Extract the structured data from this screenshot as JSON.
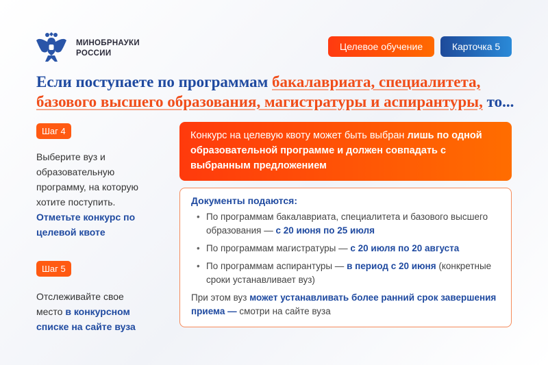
{
  "header": {
    "logo_icon": "double-headed-eagle-emblem",
    "org_line1": "МИНОБРНАУКИ",
    "org_line2": "РОССИИ",
    "tag_topic": "Целевое обучение",
    "tag_card": "Карточка 5"
  },
  "title": {
    "part1": "Если поступаете по программам ",
    "highlight": "бакалавриата, специалитета, базового высшего образования, магистратуры и аспирантуры,",
    "part2": " то..."
  },
  "steps": [
    {
      "badge": "Шаг 4",
      "text": "Выберите вуз и образовательную программу, на которую хотите поступить. ",
      "bold": "Отметьте конкурс по целевой квоте"
    },
    {
      "badge": "Шаг 5",
      "text": "Отслеживайте свое место ",
      "bold": "в конкурсном списке на сайте вуза"
    }
  ],
  "notice": {
    "text": "Конкурс на целевую квоту может быть выбран ",
    "bold": "лишь по одной образовательной программе и должен совпадать с выбранным предложением"
  },
  "documents": {
    "heading": "Документы подаются:",
    "items": [
      {
        "text": "По программам бакалавриата, специалитета и базового высшего образования — ",
        "bold": "с 20 июня по 25 июля",
        "after": ""
      },
      {
        "text": "По программам магистратуры — ",
        "bold": "с 20 июля по 20 августа",
        "after": ""
      },
      {
        "text": "По программам аспирантуры — ",
        "bold": "в период с 20 июня",
        "after": " (конкретные сроки устанавливает вуз)"
      }
    ],
    "note_text": "При этом вуз ",
    "note_bold": "может устанавливать более ранний срок завершения приема —",
    "note_after": " смотри на сайте вуза"
  },
  "colors": {
    "accent_orange": "#ff5a12",
    "accent_blue": "#1f4aa0"
  }
}
